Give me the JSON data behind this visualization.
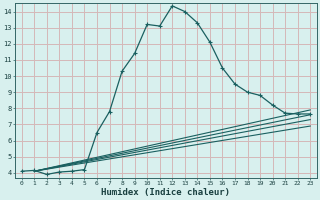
{
  "xlabel": "Humidex (Indice chaleur)",
  "bg_color": "#d8f0ee",
  "grid_color": "#d4b8b8",
  "line_color": "#1a6060",
  "xlim": [
    -0.5,
    23.5
  ],
  "ylim": [
    3.7,
    14.5
  ],
  "xticks": [
    0,
    1,
    2,
    3,
    4,
    5,
    6,
    7,
    8,
    9,
    10,
    11,
    12,
    13,
    14,
    15,
    16,
    17,
    18,
    19,
    20,
    21,
    22,
    23
  ],
  "yticks": [
    4,
    5,
    6,
    7,
    8,
    9,
    10,
    11,
    12,
    13,
    14
  ],
  "main_curve": {
    "x": [
      0,
      1,
      2,
      3,
      4,
      5,
      6,
      7,
      8,
      9,
      10,
      11,
      12,
      13,
      14,
      15,
      16,
      17,
      18,
      19,
      20,
      21,
      22,
      23
    ],
    "y": [
      4.1,
      4.15,
      3.9,
      4.05,
      4.1,
      4.2,
      6.5,
      7.8,
      10.3,
      11.4,
      13.2,
      13.1,
      14.35,
      14.0,
      13.3,
      12.1,
      10.5,
      9.5,
      9.0,
      8.8,
      8.2,
      7.7,
      7.65,
      7.65
    ]
  },
  "flat_curves": [
    {
      "x": [
        1,
        23
      ],
      "y": [
        4.1,
        7.9
      ]
    },
    {
      "x": [
        1,
        23
      ],
      "y": [
        4.1,
        7.6
      ]
    },
    {
      "x": [
        1,
        23
      ],
      "y": [
        4.1,
        7.3
      ]
    },
    {
      "x": [
        1,
        23
      ],
      "y": [
        4.1,
        6.9
      ]
    }
  ]
}
